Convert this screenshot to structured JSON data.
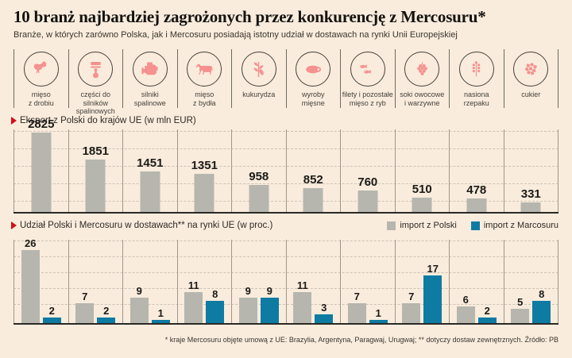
{
  "colors": {
    "background": "#f9ecdd",
    "accent_red": "#d40f14",
    "bar_gray": "#b6b6ae",
    "bar_blue": "#0e7ba3",
    "icon_pink": "#f5918f"
  },
  "header": {
    "title": "10 branż najbardziej zagrożonych przez konkurencję z Mercosuru*",
    "subtitle": "Branże, w których zarówno Polska, jak i Mercosuru posiadają istotny udział w dostawach na rynki Unii Europejskiej"
  },
  "industries": [
    {
      "icon": "poultry-icon",
      "label": "mięso\nz drobiu"
    },
    {
      "icon": "piston-icon",
      "label": "części do silników\nspalinowych"
    },
    {
      "icon": "engine-icon",
      "label": "silniki\nspalinowe"
    },
    {
      "icon": "cattle-icon",
      "label": "mięso\nz bydła"
    },
    {
      "icon": "corn-icon",
      "label": "kukurydza"
    },
    {
      "icon": "sausage-icon",
      "label": "wyroby\nmięsne"
    },
    {
      "icon": "fish-icon",
      "label": "filety i pozostałe\nmięso z ryb"
    },
    {
      "icon": "juice-icon",
      "label": "soki owocowe\ni warzywne"
    },
    {
      "icon": "rapeseed-icon",
      "label": "nasiona\nrzepaku"
    },
    {
      "icon": "sugar-icon",
      "label": "cukier"
    }
  ],
  "chart_data": [
    {
      "type": "bar",
      "title": "Eksport z Polski do krajów UE (w mln EUR)",
      "categories": [
        "mięso z drobiu",
        "części do silników spalinowych",
        "silniki spalinowe",
        "mięso z bydła",
        "kukurydza",
        "wyroby mięsne",
        "filety i pozostałe mięso z ryb",
        "soki owocowe i warzywne",
        "nasiona rzepaku",
        "cukier"
      ],
      "values": [
        2825,
        1851,
        1451,
        1351,
        958,
        852,
        760,
        510,
        478,
        331
      ],
      "ylim": [
        0,
        2825
      ],
      "grid": true,
      "bar_color": "#b6b6ae"
    },
    {
      "type": "bar",
      "title": "Udział Polski i Mercosuru w dostawach** na rynki UE (w proc.)",
      "categories": [
        "mięso z drobiu",
        "części do silników spalinowych",
        "silniki spalinowe",
        "mięso z bydła",
        "kukurydza",
        "wyroby mięsne",
        "filety i pozostałe mięso z ryb",
        "soki owocowe i warzywne",
        "nasiona rzepaku",
        "cukier"
      ],
      "series": [
        {
          "name": "import z Polski",
          "color": "#b6b6ae",
          "values": [
            26,
            7,
            9,
            11,
            9,
            11,
            7,
            7,
            6,
            5
          ]
        },
        {
          "name": "import z Marcosuru",
          "color": "#0e7ba3",
          "values": [
            2,
            2,
            1,
            8,
            9,
            3,
            1,
            17,
            2,
            8
          ]
        }
      ],
      "ylim": [
        0,
        26
      ],
      "grid": true,
      "legend_position": "top-right"
    }
  ],
  "legend": {
    "items": [
      {
        "label": "import z Polski",
        "color": "#b6b6ae"
      },
      {
        "label": "import z Marcosuru",
        "color": "#0e7ba3"
      }
    ]
  },
  "footer": {
    "note": "* kraje Mercosuru objęte umową z UE: Brazylia, Argentyna, Paragwaj, Urugwaj; ** dotyczy dostaw zewnętrznych. Źródło: PB"
  }
}
